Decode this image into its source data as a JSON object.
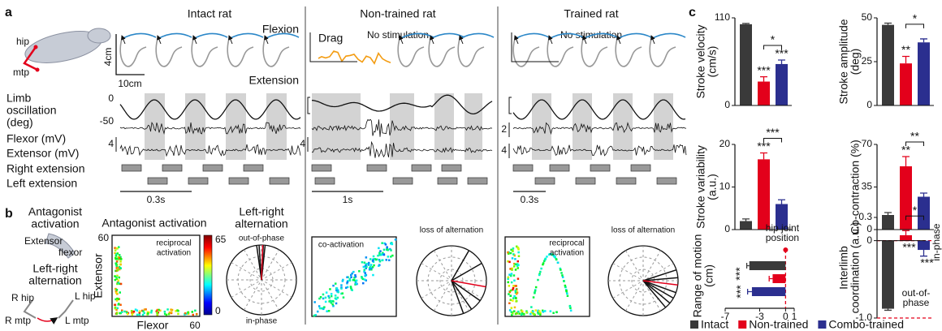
{
  "panel_a": {
    "label": "a",
    "hip": "hip",
    "mtp": "mtp",
    "flexion": "Flexion",
    "extension": "Extension",
    "scale_y": "4cm",
    "scale_x": "10cm",
    "row_labels": {
      "limb": [
        "Limb",
        "oscillation",
        "(deg)"
      ],
      "osc_ticks": [
        "0",
        "-50"
      ],
      "flexor": "Flexor (mV)",
      "extensor": "Extensor (mV)",
      "right": "Right extension",
      "left": "Left extension"
    },
    "columns": [
      {
        "title": "Intact rat",
        "emg_scale": [
          "4"
        ],
        "time_scale": "0.3s"
      },
      {
        "title": "Non-trained rat",
        "drag": "Drag",
        "condition": "No stimulation",
        "emg_scale": [
          "4"
        ],
        "time_scale": "1s"
      },
      {
        "title": "Trained rat",
        "condition": "No stimulation",
        "emg_scale": [
          "2",
          "4"
        ],
        "time_scale": "0.3s"
      }
    ]
  },
  "panel_b": {
    "label": "b",
    "antagonist": [
      "Antagonist",
      "activation"
    ],
    "extensor": "Extensor",
    "flexor": "flexor",
    "alternation": [
      "Left-right",
      "alternation"
    ],
    "r_hip": "R hip",
    "l_hip": "L hip",
    "r_mtp": "R mtp",
    "l_mtp": "L mtp",
    "heatmap": {
      "title": "Antagonist activation",
      "y_label": "Extensor",
      "x_label": "Flexor",
      "y_max": "60",
      "x_max": "60",
      "colorbar": [
        "65",
        "0"
      ]
    },
    "polar": {
      "title": [
        "Left-right",
        "alternation"
      ],
      "top": "out-of-phase",
      "bottom": "in-phase"
    },
    "notes": {
      "intact_heatmap": [
        "reciprocal",
        "activation"
      ],
      "nontrained_heatmap": "co-activation",
      "nontrained_polar": "loss of alternation",
      "trained_heatmap": [
        "reciprocal",
        "activation"
      ],
      "trained_polar": "loss of alternation"
    }
  },
  "panel_c": {
    "label": "c"
  },
  "chart_data": [
    {
      "type": "bar",
      "ylabel": [
        "Stroke velocity",
        "(cm/s)"
      ],
      "categories": [
        "Intact",
        "Non-trained",
        "Combo-trained"
      ],
      "colors": [
        "#3a3a3a",
        "#e3001b",
        "#2b2f8f"
      ],
      "values": [
        102,
        30,
        52
      ],
      "errors": [
        1,
        6,
        5
      ],
      "ylim": [
        0,
        110
      ],
      "yticks": [
        0,
        110
      ],
      "annotations": [
        "***",
        "***",
        "*"
      ]
    },
    {
      "type": "bar",
      "ylabel": [
        "Stroke amplitude",
        "(deg)"
      ],
      "categories": [
        "Intact",
        "Non-trained",
        "Combo-trained"
      ],
      "colors": [
        "#3a3a3a",
        "#e3001b",
        "#2b2f8f"
      ],
      "values": [
        46,
        24,
        36
      ],
      "errors": [
        1,
        4,
        2
      ],
      "ylim": [
        0,
        50
      ],
      "yticks": [
        0,
        25,
        50
      ],
      "annotations": [
        "**",
        "*"
      ]
    },
    {
      "type": "bar",
      "ylabel": [
        "Stroke variability",
        "(a.u.)"
      ],
      "categories": [
        "Intact",
        "Non-trained",
        "Combo-trained"
      ],
      "colors": [
        "#3a3a3a",
        "#e3001b",
        "#2b2f8f"
      ],
      "values": [
        2,
        16.5,
        6
      ],
      "errors": [
        0.5,
        1.5,
        1
      ],
      "ylim": [
        0,
        20
      ],
      "yticks": [
        0,
        10,
        20
      ],
      "annotations": [
        "***",
        "***"
      ]
    },
    {
      "type": "bar",
      "ylabel": [
        "Co-contraction (%)"
      ],
      "categories": [
        "Intact",
        "Non-trained",
        "Combo-trained"
      ],
      "colors": [
        "#3a3a3a",
        "#e3001b",
        "#2b2f8f"
      ],
      "values": [
        12,
        52,
        27
      ],
      "errors": [
        2,
        8,
        3
      ],
      "ylim": [
        0,
        70
      ],
      "yticks": [
        0,
        35,
        70
      ],
      "annotations": [
        "**",
        "**"
      ]
    },
    {
      "type": "barh",
      "ylabel": [
        "Range of motion",
        "(cm)"
      ],
      "categories": [
        "Intact",
        "Non-trained",
        "Combo-trained"
      ],
      "colors": [
        "#3a3a3a",
        "#e3001b",
        "#2b2f8f"
      ],
      "values": [
        -4.2,
        -1.5,
        -3.9
      ],
      "errors": [
        0.3,
        0.4,
        0.5
      ],
      "xlim": [
        -7,
        1
      ],
      "xticks": [
        -7,
        -3,
        0,
        1
      ],
      "reference_lines": [
        0
      ],
      "reference_label": [
        "hip joint",
        "position"
      ],
      "annotations": [
        "***",
        "***"
      ]
    },
    {
      "type": "bar",
      "ylabel": [
        "Interlimb",
        "coordination (a.u.)"
      ],
      "categories": [
        "Intact",
        "Non-trained",
        "Combo-trained"
      ],
      "colors": [
        "#3a3a3a",
        "#e3001b",
        "#2b2f8f"
      ],
      "values": [
        -0.88,
        0.07,
        -0.12
      ],
      "errors": [
        0.02,
        0.06,
        0.08
      ],
      "ylim": [
        -1,
        0.3
      ],
      "yticks": [
        {
          "value": -1,
          "label": "-1.0"
        },
        0,
        0.3
      ],
      "reference_lines": [
        0,
        -1
      ],
      "top_label": "in-phase",
      "bottom_label": [
        "out-of-",
        "phase"
      ],
      "annotations": [
        "***",
        "***",
        "*"
      ]
    }
  ]
}
